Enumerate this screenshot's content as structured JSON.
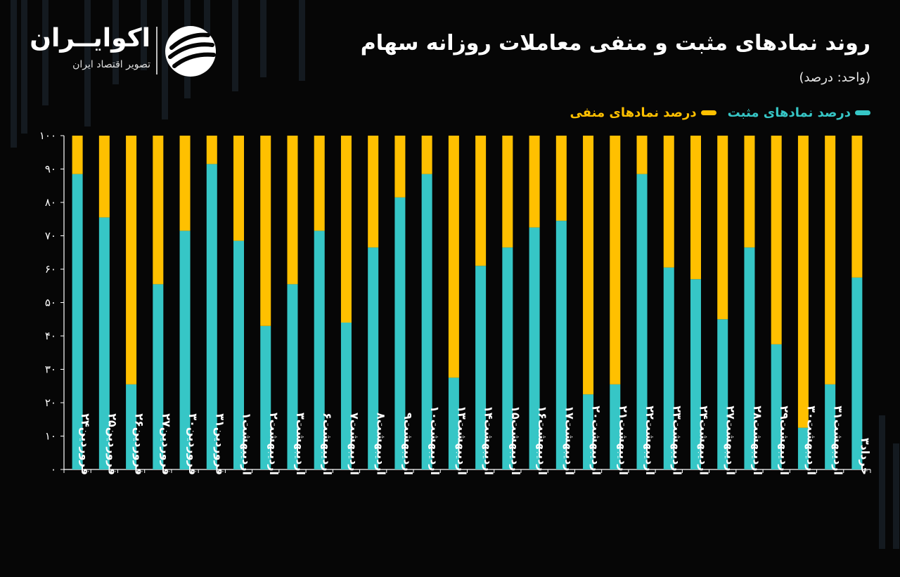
{
  "title": "روند نمادهای مثبت و منفی معاملات روزانه سهام",
  "unit": "(واحد: درصد)",
  "brand": {
    "name": "اکوایــران",
    "subtitle": "تصویر اقتصاد ایران"
  },
  "colors": {
    "positive": "#36c6c6",
    "negative": "#ffc000",
    "axis": "#ffffff",
    "background": "#060606"
  },
  "chart_data": {
    "type": "bar",
    "stacked": true,
    "legend_position": "top-right",
    "ylim": [
      0,
      100
    ],
    "yticks": [
      "۰",
      "۱۰",
      "۲۰",
      "۳۰",
      "۴۰",
      "۵۰",
      "۶۰",
      "۷۰",
      "۸۰",
      "۹۰",
      "۱۰۰"
    ],
    "categories": [
      "فروردین۲۴",
      "فروردین۲۵",
      "فروردین۲۶",
      "فروردین۲۷",
      "فروردین۳۰",
      "فروردین۳۱",
      "اردیبهشت۱",
      "اردیبهشت۲",
      "اردیبهشت۳",
      "اردیبهشت۶",
      "اردیبهشت۷",
      "اردیبهشت۸",
      "اردیبهشت۹",
      "اردیبهشت۱۰",
      "اردیبهشت۱۳",
      "اردیبهشت۱۴",
      "اردیبهشت۱۵",
      "اردیبهشت۱۶",
      "اردیبهشت۱۷",
      "اردیبهشت۲۰",
      "اردیبهشت۲۱",
      "اردیبهشت۲۲",
      "اردیبهشت۲۳",
      "اردیبهشت۲۴",
      "اردیبهشت۲۷",
      "اردیبهشت۲۸",
      "اردیبهشت۲۹",
      "اردیبهشت۳۰",
      "اردیبهشت۳۱",
      "خرداد۳"
    ],
    "series": [
      {
        "name": "درصد نمادهای مثبت",
        "values": [
          88.5,
          75.5,
          25.5,
          55.5,
          71.5,
          91.5,
          68.5,
          43,
          55.5,
          71.5,
          44,
          66.5,
          81.5,
          88.5,
          27.5,
          61,
          66.5,
          72.5,
          74.5,
          22.5,
          25.5,
          88.5,
          60.5,
          57,
          45,
          66.5,
          37.5,
          12.5,
          25.5,
          57.5
        ]
      },
      {
        "name": "درصد نمادهای منفی",
        "values": [
          11.5,
          24.5,
          74.5,
          44.5,
          28.5,
          8.5,
          31.5,
          57,
          44.5,
          28.5,
          56,
          33.5,
          18.5,
          11.5,
          72.5,
          39,
          33.5,
          27.5,
          25.5,
          77.5,
          74.5,
          11.5,
          39.5,
          43,
          55,
          33.5,
          62.5,
          87.5,
          74.5,
          42.5
        ]
      }
    ]
  }
}
